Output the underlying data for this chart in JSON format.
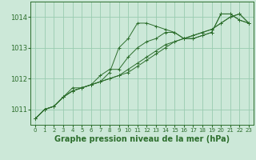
{
  "title": "Graphe pression niveau de la mer (hPa)",
  "bg_color": "#cce8d8",
  "grid_color": "#99ccb0",
  "line_color": "#2d6e2d",
  "xlim": [
    -0.5,
    23.5
  ],
  "ylim": [
    1010.5,
    1014.5
  ],
  "yticks": [
    1011,
    1012,
    1013,
    1014
  ],
  "xticks": [
    0,
    1,
    2,
    3,
    4,
    5,
    6,
    7,
    8,
    9,
    10,
    11,
    12,
    13,
    14,
    15,
    16,
    17,
    18,
    19,
    20,
    21,
    22,
    23
  ],
  "series": [
    [
      1010.7,
      1011.0,
      1011.1,
      1011.4,
      1011.7,
      1011.7,
      1011.8,
      1011.9,
      1012.2,
      1013.0,
      1013.3,
      1013.8,
      1013.8,
      1013.7,
      1013.6,
      1013.5,
      1013.3,
      1013.3,
      1013.4,
      1013.5,
      1014.1,
      1014.1,
      1013.9,
      1013.8
    ],
    [
      1010.7,
      1011.0,
      1011.1,
      1011.4,
      1011.6,
      1011.7,
      1011.8,
      1011.9,
      1012.0,
      1012.1,
      1012.3,
      1012.5,
      1012.7,
      1012.9,
      1013.1,
      1013.2,
      1013.3,
      1013.4,
      1013.5,
      1013.6,
      1013.8,
      1014.0,
      1014.1,
      1013.8
    ],
    [
      1010.7,
      1011.0,
      1011.1,
      1011.4,
      1011.6,
      1011.7,
      1011.8,
      1011.9,
      1012.0,
      1012.1,
      1012.2,
      1012.4,
      1012.6,
      1012.8,
      1013.0,
      1013.2,
      1013.3,
      1013.4,
      1013.5,
      1013.6,
      1013.8,
      1014.0,
      1014.1,
      1013.8
    ],
    [
      1010.7,
      1011.0,
      1011.1,
      1011.4,
      1011.6,
      1011.7,
      1011.8,
      1012.1,
      1012.3,
      1012.3,
      1012.7,
      1013.0,
      1013.2,
      1013.3,
      1013.5,
      1013.5,
      1013.3,
      1013.3,
      1013.4,
      1013.5,
      1014.1,
      1014.1,
      1013.9,
      1013.8
    ]
  ],
  "title_fontsize": 7,
  "tick_fontsize": 5,
  "ytick_fontsize": 6
}
